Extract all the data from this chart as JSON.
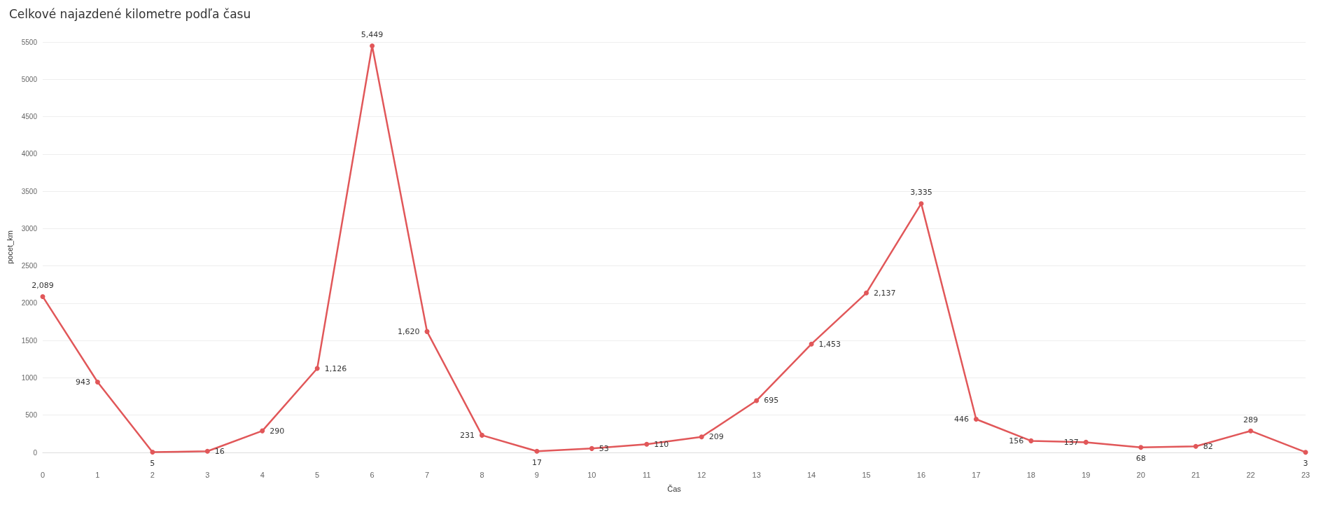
{
  "chart_data": {
    "type": "line",
    "title": "Celkové najazdené kilometre podľa času",
    "xlabel": "Čas",
    "ylabel": "pocet_km",
    "categories": [
      "0",
      "1",
      "2",
      "3",
      "4",
      "5",
      "6",
      "7",
      "8",
      "9",
      "10",
      "11",
      "12",
      "13",
      "14",
      "15",
      "16",
      "17",
      "18",
      "19",
      "20",
      "21",
      "22",
      "23"
    ],
    "series": [
      {
        "color": "#e15759",
        "values": [
          2089,
          943,
          5,
          16,
          290,
          1126,
          5449,
          1620,
          231,
          17,
          53,
          110,
          209,
          695,
          1453,
          2137,
          3335,
          446,
          156,
          137,
          68,
          82,
          289,
          3
        ],
        "value_labels": [
          "2,089",
          "943",
          "5",
          "16",
          "290",
          "1,126",
          "5,449",
          "1,620",
          "231",
          "17",
          "53",
          "110",
          "209",
          "695",
          "1,453",
          "2,137",
          "3,335",
          "446",
          "156",
          "137",
          "68",
          "82",
          "289",
          "3"
        ]
      }
    ],
    "ylim": [
      0,
      5500
    ],
    "yticks": [
      0,
      500,
      1000,
      1500,
      2000,
      2500,
      3000,
      3500,
      4000,
      4500,
      5000,
      5500
    ],
    "grid": "y",
    "marker": "circle",
    "line_style": "solid"
  }
}
